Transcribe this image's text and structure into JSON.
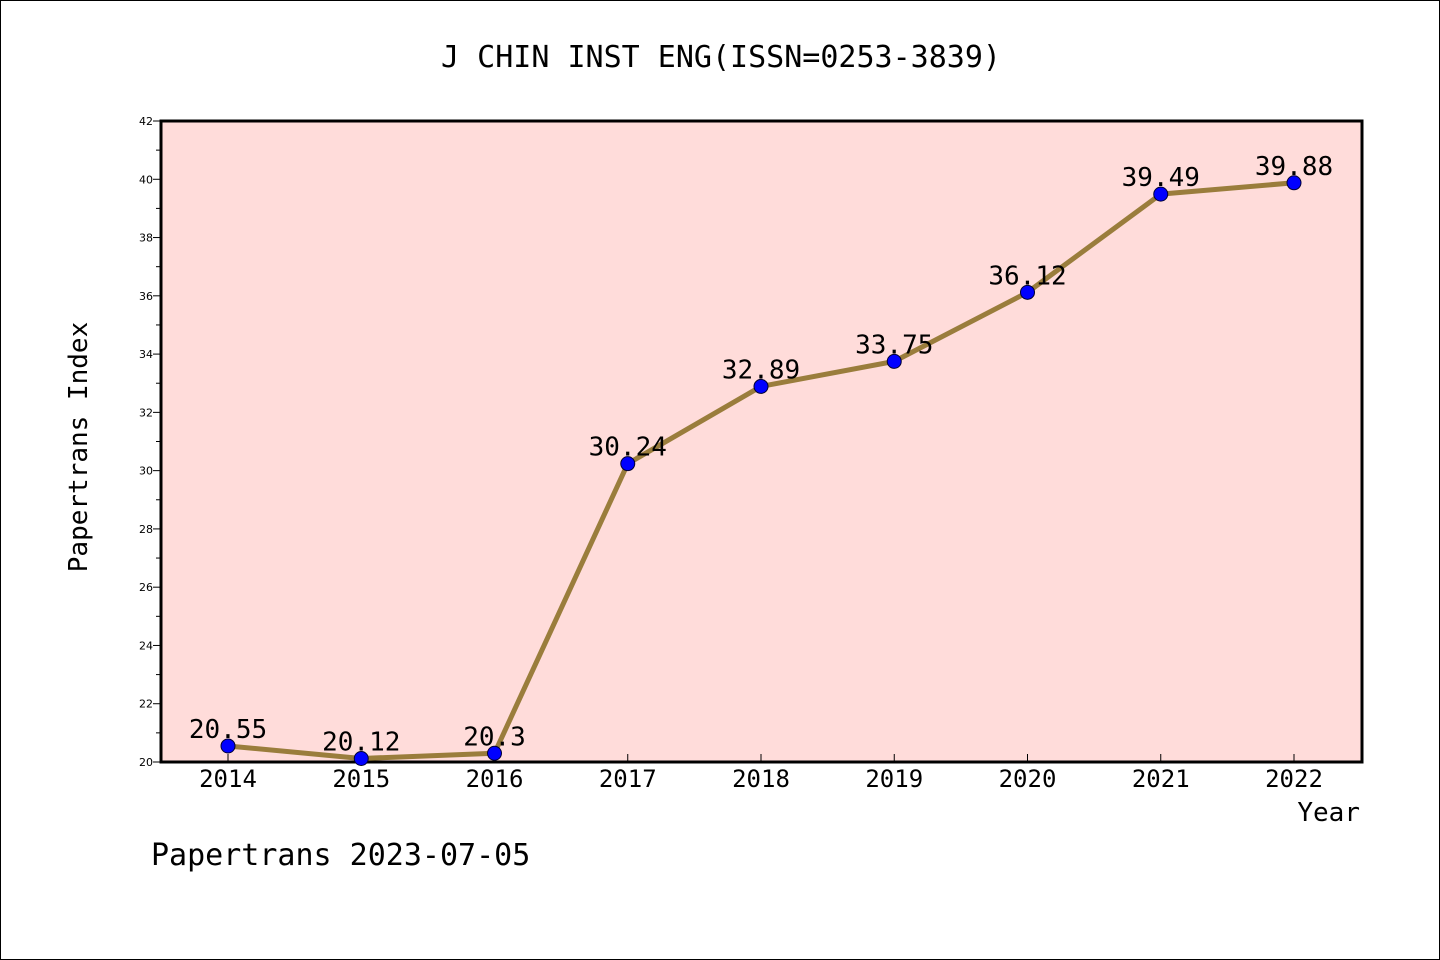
{
  "chart_data": {
    "type": "line",
    "title": "J CHIN INST ENG(ISSN=0253-3839)",
    "xlabel": "Year",
    "ylabel": "Papertrans Index",
    "x": [
      "2014",
      "2015",
      "2016",
      "2017",
      "2018",
      "2019",
      "2020",
      "2021",
      "2022"
    ],
    "series": [
      {
        "values": [
          20.55,
          20.12,
          20.3,
          30.24,
          32.89,
          33.75,
          36.12,
          39.49,
          39.88
        ],
        "labels": [
          "20.55",
          "20.12",
          "20.3",
          "30.24",
          "32.89",
          "33.75",
          "36.12",
          "39.49",
          "39.88"
        ]
      }
    ],
    "ylim": [
      20,
      42
    ],
    "yticks": [
      "20",
      "22",
      "24",
      "26",
      "28",
      "30",
      "32",
      "34",
      "36",
      "38",
      "40",
      "42"
    ],
    "grid": false,
    "colors": {
      "plot_background": "#FFDCDA",
      "line": "#9A7D3C",
      "marker": "#0000FF"
    }
  },
  "footer": {
    "source_label": "Papertrans 2023-07-05"
  }
}
